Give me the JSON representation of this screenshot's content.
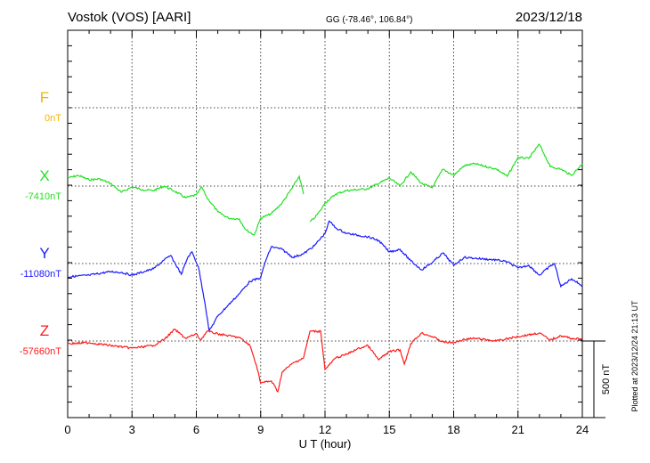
{
  "header": {
    "station": "Vostok (VOS)  [AARI]",
    "coords": "GG (-78.46°, 106.84°)",
    "date": "2023/12/18"
  },
  "footer": {
    "plotted": "Plotted at 2023/12/24 21:13 UT",
    "scale_label": "500 nT"
  },
  "chart_data": {
    "type": "line",
    "title": "Vostok (VOS)  [AARI]",
    "xlabel": "U T (hour)",
    "ylabel": "",
    "xlim": [
      0,
      24
    ],
    "x_ticks": [
      "0",
      "3",
      "6",
      "9",
      "12",
      "15",
      "18",
      "21",
      "24"
    ],
    "scale_bar_nT": 500,
    "grid": true,
    "series": [
      {
        "name": "F",
        "baseline": "0nT",
        "color": "#f5b400",
        "points": []
      },
      {
        "name": "X",
        "baseline": "-7410nT",
        "color": "#22e022",
        "points": [
          [
            0,
            52
          ],
          [
            0.5,
            69
          ],
          [
            1,
            40
          ],
          [
            1.5,
            46
          ],
          [
            2,
            17
          ],
          [
            2.25,
            -11
          ],
          [
            2.5,
            -40
          ],
          [
            3,
            -6
          ],
          [
            3.5,
            -23
          ],
          [
            4,
            -29
          ],
          [
            4.5,
            0
          ],
          [
            5,
            -34
          ],
          [
            5.5,
            -75
          ],
          [
            6,
            -57
          ],
          [
            6.25,
            -6
          ],
          [
            6.5,
            -75
          ],
          [
            7,
            -166
          ],
          [
            7.5,
            -207
          ],
          [
            8,
            -212
          ],
          [
            8.3,
            -281
          ],
          [
            8.7,
            -316
          ],
          [
            9,
            -207
          ],
          [
            9.5,
            -178
          ],
          [
            10,
            -109
          ],
          [
            10.5,
            -6
          ],
          [
            10.8,
            63
          ],
          [
            11,
            -52
          ],
          null,
          [
            11.3,
            -230
          ],
          [
            11.5,
            -207
          ],
          [
            11.8,
            -155
          ],
          [
            12,
            -109
          ],
          [
            12.5,
            -52
          ],
          [
            13,
            -29
          ],
          [
            14,
            -17
          ],
          [
            15,
            52
          ],
          [
            15.5,
            0
          ],
          [
            16,
            92
          ],
          [
            16.5,
            17
          ],
          [
            17,
            -11
          ],
          [
            17.5,
            109
          ],
          [
            18,
            69
          ],
          [
            18.5,
            132
          ],
          [
            19,
            144
          ],
          [
            20,
            109
          ],
          [
            20.5,
            63
          ],
          [
            21,
            184
          ],
          [
            21.5,
            178
          ],
          [
            22,
            270
          ],
          [
            22.5,
            126
          ],
          [
            23,
            109
          ],
          [
            23.5,
            69
          ],
          [
            24,
            144
          ]
        ]
      },
      {
        "name": "Y",
        "baseline": "-11080nT",
        "color": "#1a1aff",
        "points": [
          [
            0,
            -86
          ],
          [
            1,
            -75
          ],
          [
            2,
            -52
          ],
          [
            2.5,
            -57
          ],
          [
            3,
            -75
          ],
          [
            4,
            -34
          ],
          [
            4.5,
            23
          ],
          [
            4.8,
            52
          ],
          [
            5.3,
            -69
          ],
          [
            5.6,
            40
          ],
          [
            5.8,
            75
          ],
          [
            6.1,
            -23
          ],
          [
            6.4,
            -253
          ],
          [
            6.6,
            -436
          ],
          [
            7,
            -339
          ],
          [
            8,
            -195
          ],
          [
            8.5,
            -115
          ],
          [
            9,
            -92
          ],
          [
            9.2,
            6
          ],
          [
            9.5,
            109
          ],
          [
            10,
            92
          ],
          [
            10.5,
            40
          ],
          [
            11,
            63
          ],
          [
            11.5,
            115
          ],
          [
            12,
            195
          ],
          [
            12.2,
            275
          ],
          [
            12.5,
            230
          ],
          [
            13,
            195
          ],
          [
            14,
            172
          ],
          [
            14.5,
            149
          ],
          [
            15,
            75
          ],
          [
            15.5,
            92
          ],
          [
            16,
            17
          ],
          [
            16.5,
            -40
          ],
          [
            17,
            6
          ],
          [
            17.5,
            69
          ],
          [
            18,
            -11
          ],
          [
            18.5,
            40
          ],
          [
            19,
            34
          ],
          [
            20,
            23
          ],
          [
            20.5,
            11
          ],
          [
            21,
            -29
          ],
          [
            21.5,
            -11
          ],
          [
            22,
            -75
          ],
          [
            22.5,
            -17
          ],
          [
            22.7,
            0
          ],
          [
            23,
            -149
          ],
          [
            23.5,
            -98
          ],
          [
            24,
            -144
          ]
        ]
      },
      {
        "name": "Z",
        "baseline": "-57660nT",
        "color": "#ff1a1a",
        "points": [
          [
            0,
            -17
          ],
          [
            1,
            -11
          ],
          [
            2,
            -29
          ],
          [
            3,
            -46
          ],
          [
            4,
            -29
          ],
          [
            4.5,
            11
          ],
          [
            5,
            75
          ],
          [
            5.5,
            17
          ],
          [
            6,
            46
          ],
          [
            6.2,
            6
          ],
          [
            6.5,
            63
          ],
          [
            7,
            46
          ],
          [
            8,
            23
          ],
          [
            8.5,
            -29
          ],
          [
            8.8,
            -155
          ],
          [
            9,
            -270
          ],
          [
            9.5,
            -258
          ],
          [
            9.8,
            -327
          ],
          [
            10,
            -201
          ],
          [
            10.5,
            -143
          ],
          [
            11,
            -109
          ],
          [
            11.3,
            63
          ],
          [
            11.8,
            63
          ],
          [
            12,
            -184
          ],
          [
            12.5,
            -109
          ],
          [
            13,
            -86
          ],
          [
            13.5,
            -52
          ],
          [
            14,
            -29
          ],
          [
            14.5,
            -121
          ],
          [
            15,
            -69
          ],
          [
            15.5,
            -57
          ],
          [
            15.7,
            -149
          ],
          [
            16,
            -17
          ],
          [
            16.5,
            52
          ],
          [
            17,
            29
          ],
          [
            17.5,
            -6
          ],
          [
            18,
            -11
          ],
          [
            18.5,
            11
          ],
          [
            19,
            17
          ],
          [
            20,
            0
          ],
          [
            21,
            29
          ],
          [
            21.5,
            40
          ],
          [
            22,
            52
          ],
          [
            22.5,
            6
          ],
          [
            23,
            34
          ],
          [
            23.5,
            17
          ],
          [
            24,
            11
          ]
        ]
      }
    ]
  }
}
